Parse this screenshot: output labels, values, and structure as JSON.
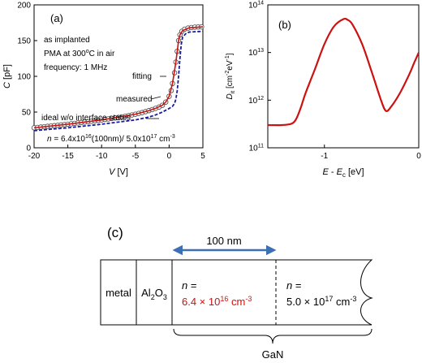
{
  "panel_a": {
    "label": "(a)",
    "notes": [
      "as implanted",
      "PMA at 300",
      "o",
      "C in air",
      "frequency: 1 MHz"
    ],
    "annotations": {
      "fitting": "fitting",
      "measured": "measured",
      "ideal": "ideal w/o interface states"
    },
    "doping": {
      "n": "n",
      "eq": " = 6.4x10",
      "e1": "16",
      "mid": "(100nm)/ 5.0x10",
      "e2": "17",
      "unit": " cm",
      "unit_exp": "-3"
    },
    "xlabel": {
      "v": "V",
      "unit": " [V]"
    },
    "ylabel": {
      "c": "C",
      "unit": " [pF]"
    }
  },
  "panel_b": {
    "label": "(b)",
    "xlabel": {
      "e": "E",
      "minus": " - ",
      "ec": "E",
      "ec_sub": "c",
      "unit": " [eV]"
    },
    "ylabel": {
      "d": "D",
      "d_sub": "it",
      "unit": " [cm",
      "e1": "-2",
      "ev": "eV",
      "e2": "-1",
      "close": "]"
    }
  },
  "panel_c": {
    "label": "(c)",
    "width_label": "100 nm",
    "metal": "metal",
    "oxide": {
      "base": "Al",
      "sub1": "2",
      "mid": "O",
      "sub2": "3"
    },
    "region1": {
      "n": "n",
      "eq": " =",
      "value": "6.4 × 10",
      "exp": "16",
      "unit": " cm",
      "unit_exp": "-3"
    },
    "region2": {
      "n": "n",
      "eq": " =",
      "value": "5.0 × 10",
      "exp": "17",
      "unit": " cm",
      "unit_exp": "-3"
    },
    "substrate": "GaN"
  },
  "colors": {
    "fit": "#cc1111",
    "ideal": "#1a1aa0",
    "marker_fill": "#ffffff",
    "marker_edge": "#444444",
    "arrow": "#3c6fb4",
    "accent_text": "#cc1111"
  },
  "chart_data": [
    {
      "type": "scatter",
      "title": "",
      "xlabel": "V [V]",
      "ylabel": "C [pF]",
      "xlim": [
        -20,
        5
      ],
      "ylim": [
        0,
        200
      ],
      "xticks": [
        -20,
        -15,
        -10,
        -5,
        0,
        5
      ],
      "yticks": [
        0,
        50,
        100,
        150,
        200
      ],
      "series": [
        {
          "name": "measured",
          "style": "open circles",
          "points": [
            [
              -20,
              28
            ],
            [
              -19.5,
              28.5
            ],
            [
              -19,
              29
            ],
            [
              -18.5,
              29.5
            ],
            [
              -18,
              30
            ],
            [
              -17.5,
              30.5
            ],
            [
              -17,
              31
            ],
            [
              -16.5,
              31.5
            ],
            [
              -16,
              32
            ],
            [
              -15.5,
              32.5
            ],
            [
              -15,
              33
            ],
            [
              -14.5,
              33.6
            ],
            [
              -14,
              34.2
            ],
            [
              -13.5,
              34.8
            ],
            [
              -13,
              35.4
            ],
            [
              -12.5,
              36
            ],
            [
              -12,
              36.6
            ],
            [
              -11.5,
              37.2
            ],
            [
              -11,
              37.8
            ],
            [
              -10.5,
              38.4
            ],
            [
              -10,
              39
            ],
            [
              -9.5,
              39.7
            ],
            [
              -9,
              40.4
            ],
            [
              -8.5,
              41.1
            ],
            [
              -8,
              41.8
            ],
            [
              -7.5,
              42.5
            ],
            [
              -7,
              43.3
            ],
            [
              -6.5,
              44.1
            ],
            [
              -6,
              45
            ],
            [
              -5.5,
              46
            ],
            [
              -5,
              47
            ],
            [
              -4.5,
              48.1
            ],
            [
              -4,
              49.3
            ],
            [
              -3.5,
              50.6
            ],
            [
              -3,
              52
            ],
            [
              -2.5,
              53.5
            ],
            [
              -2,
              55.2
            ],
            [
              -1.5,
              57
            ],
            [
              -1,
              59.5
            ],
            [
              -0.5,
              64
            ],
            [
              0,
              72
            ],
            [
              0.3,
              80
            ],
            [
              0.5,
              90
            ],
            [
              0.8,
              105
            ],
            [
              1,
              120
            ],
            [
              1.2,
              135
            ],
            [
              1.4,
              150
            ],
            [
              1.6,
              158
            ],
            [
              1.9,
              163
            ],
            [
              2.3,
              166
            ],
            [
              2.8,
              167.5
            ],
            [
              3.3,
              168.3
            ],
            [
              3.8,
              168.8
            ],
            [
              4.3,
              169.1
            ],
            [
              4.8,
              169.3
            ]
          ]
        },
        {
          "name": "fitting",
          "style": "solid red line",
          "points": [
            [
              -20,
              28
            ],
            [
              -15,
              33
            ],
            [
              -10,
              39
            ],
            [
              -5,
              47
            ],
            [
              -3,
              52
            ],
            [
              -2,
              55.2
            ],
            [
              -1,
              59.5
            ],
            [
              -0.5,
              64
            ],
            [
              0,
              72
            ],
            [
              0.5,
              90
            ],
            [
              1,
              120
            ],
            [
              1.4,
              150
            ],
            [
              1.6,
              158
            ],
            [
              2,
              164
            ],
            [
              3,
              168
            ],
            [
              5,
              169.3
            ]
          ]
        },
        {
          "name": "ideal w/o interface states",
          "style": "dashed blue line",
          "points": [
            [
              -20,
              24
            ],
            [
              -15,
              28
            ],
            [
              -10,
              33
            ],
            [
              -5,
              39
            ],
            [
              -3,
              43
            ],
            [
              -2,
              46
            ],
            [
              -1,
              50
            ],
            [
              0,
              55
            ],
            [
              0.5,
              58
            ],
            [
              0.8,
              62
            ],
            [
              1,
              68
            ],
            [
              1.2,
              80
            ],
            [
              1.4,
              100
            ],
            [
              1.6,
              125
            ],
            [
              1.8,
              145
            ],
            [
              2,
              155
            ],
            [
              2.5,
              160
            ],
            [
              3,
              162
            ],
            [
              5,
              163
            ]
          ]
        }
      ]
    },
    {
      "type": "line",
      "title": "",
      "xlabel": "E - Ec [eV]",
      "ylabel": "Dit [cm-2eV-1]",
      "xlim": [
        -1.6,
        0
      ],
      "ylim": [
        100000000000.0,
        100000000000000.0
      ],
      "yscale": "log",
      "xticks": [
        -1,
        0
      ],
      "xtick_labels": [
        "-1",
        "0"
      ],
      "yticks": [
        100000000000.0,
        1000000000000.0,
        10000000000000.0,
        100000000000000.0
      ],
      "ytick_labels": [
        "10^11",
        "10^12",
        "10^13",
        "10^14"
      ],
      "series": [
        {
          "name": "",
          "points": [
            [
              -1.6,
              300000000000.0
            ],
            [
              -1.45,
              300000000000.0
            ],
            [
              -1.35,
              320000000000.0
            ],
            [
              -1.3,
              400000000000.0
            ],
            [
              -1.25,
              700000000000.0
            ],
            [
              -1.2,
              1400000000000.0
            ],
            [
              -1.1,
              4500000000000.0
            ],
            [
              -1.0,
              15000000000000.0
            ],
            [
              -0.9,
              35000000000000.0
            ],
            [
              -0.8,
              50000000000000.0
            ],
            [
              -0.75,
              48000000000000.0
            ],
            [
              -0.7,
              38000000000000.0
            ],
            [
              -0.6,
              15000000000000.0
            ],
            [
              -0.5,
              4000000000000.0
            ],
            [
              -0.4,
              1000000000000.0
            ],
            [
              -0.35,
              600000000000.0
            ],
            [
              -0.3,
              700000000000.0
            ],
            [
              -0.2,
              1400000000000.0
            ],
            [
              -0.1,
              3500000000000.0
            ],
            [
              -0.05,
              6000000000000.0
            ],
            [
              0,
              10000000000000.0
            ]
          ]
        }
      ]
    }
  ]
}
